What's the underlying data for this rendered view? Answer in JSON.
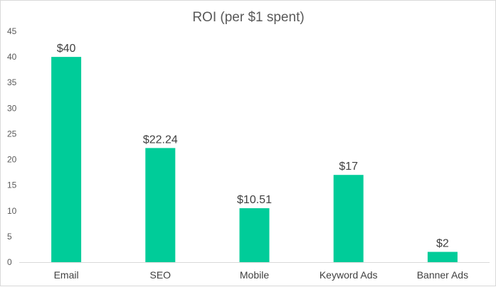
{
  "chart_data": {
    "type": "bar",
    "title": "ROI (per $1 spent)",
    "categories": [
      "Email",
      "SEO",
      "Mobile",
      "Keyword Ads",
      "Banner Ads"
    ],
    "values": [
      40,
      22.24,
      10.51,
      17,
      2
    ],
    "data_labels": [
      "$40",
      "$22.24",
      "$10.51",
      "$17",
      "$2"
    ],
    "xlabel": "",
    "ylabel": "",
    "ylim": [
      0,
      45
    ],
    "yticks": [
      "0",
      "5",
      "10",
      "15",
      "20",
      "25",
      "30",
      "35",
      "40",
      "45"
    ],
    "grid": false,
    "legend": "none",
    "colors": {
      "bar": "#00CC99",
      "axis": "#d9d9d9",
      "text": "#595959"
    }
  }
}
